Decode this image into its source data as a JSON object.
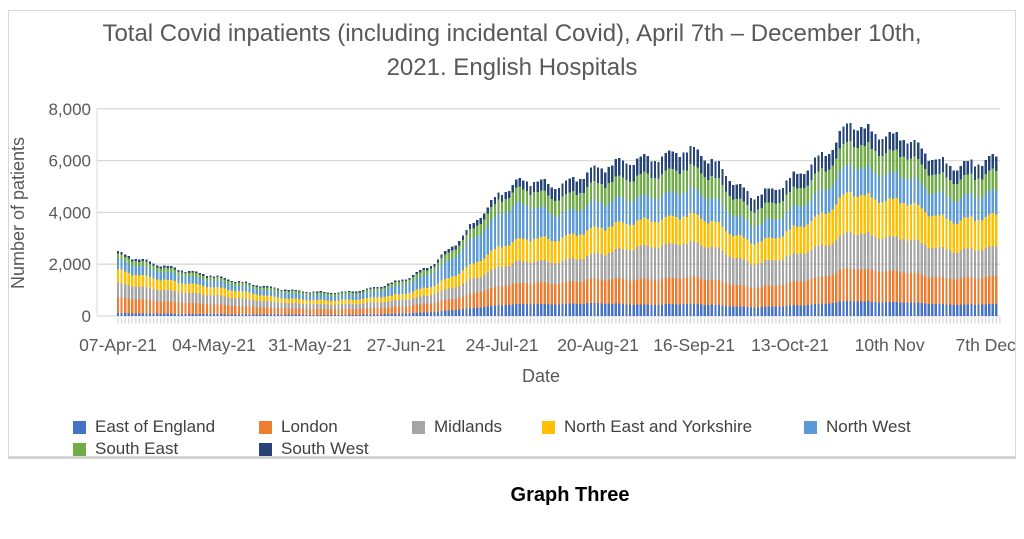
{
  "chart": {
    "title": "Total Covid inpatients (including incidental Covid), April 7th – December 10th, 2021. English Hospitals",
    "caption": "Graph Three",
    "y_axis": {
      "label": "Number of patients",
      "ticks": [
        {
          "label": "0",
          "value": 0
        },
        {
          "label": "2,000",
          "value": 2000
        },
        {
          "label": "4,000",
          "value": 4000
        },
        {
          "label": "6,000",
          "value": 6000
        },
        {
          "label": "8,000",
          "value": 8000
        }
      ]
    },
    "x_axis": {
      "label": "Date",
      "ticks": [
        {
          "label": "07-Apr-21",
          "day": 0
        },
        {
          "label": "04-May-21",
          "day": 27
        },
        {
          "label": "31-May-21",
          "day": 54
        },
        {
          "label": "27-Jun-21",
          "day": 81
        },
        {
          "label": "24-Jul-21",
          "day": 108
        },
        {
          "label": "20-Aug-21",
          "day": 135
        },
        {
          "label": "16-Sep-21",
          "day": 162
        },
        {
          "label": "13-Oct-21",
          "day": 189
        },
        {
          "label": "10th Nov",
          "day": 217
        },
        {
          "label": "7th Dec",
          "day": 244
        }
      ]
    },
    "colors": {
      "gridline": "#d9d9d9",
      "axis_text": "#595959",
      "legend_text": "#404040"
    }
  },
  "chart_data": {
    "type": "bar",
    "stacked": true,
    "x_start": "07-Apr-21",
    "x_end": "10-Dec-21",
    "n_days": 248,
    "ylim": [
      0,
      8000
    ],
    "grid": true,
    "legend_position": "bottom",
    "series": [
      {
        "name": "East of England",
        "color": "#4472C4"
      },
      {
        "name": "London",
        "color": "#ED7D31"
      },
      {
        "name": "Midlands",
        "color": "#A5A5A5"
      },
      {
        "name": "North East and Yorkshire",
        "color": "#FFC000"
      },
      {
        "name": "North West",
        "color": "#5B9BD5"
      },
      {
        "name": "South East",
        "color": "#70AD47"
      },
      {
        "name": "South West",
        "color": "#264478"
      }
    ],
    "anchor_note": "values = stacked daily patients per region [EoE, London, Midlands, NE&Yorkshire, NorthWest, SouthEast, SouthWest], day 0 = 07-Apr-21; daily bars interpolated between anchors",
    "anchors": [
      {
        "day": 0,
        "values": [
          110,
          600,
          551,
          502,
          392,
          196,
          98
        ]
      },
      {
        "day": 7,
        "values": [
          97,
          527,
          484,
          441,
          344,
          172,
          86
        ]
      },
      {
        "day": 14,
        "values": [
          86,
          466,
          428,
          390,
          304,
          152,
          76
        ]
      },
      {
        "day": 21,
        "values": [
          77,
          417,
          383,
          349,
          272,
          136,
          68
        ]
      },
      {
        "day": 27,
        "values": [
          70,
          380,
          349,
          318,
          248,
          124,
          62
        ]
      },
      {
        "day": 34,
        "values": [
          60,
          326,
          299,
          273,
          213,
          106,
          53
        ]
      },
      {
        "day": 41,
        "values": [
          54,
          276,
          247,
          219,
          207,
          94,
          53
        ]
      },
      {
        "day": 48,
        "values": [
          51,
          237,
          207,
          172,
          207,
          86,
          51
        ]
      },
      {
        "day": 54,
        "values": [
          47,
          221,
          193,
          160,
          193,
          80,
          47
        ]
      },
      {
        "day": 61,
        "values": [
          45,
          213,
          186,
          154,
          186,
          77,
          45
        ]
      },
      {
        "day": 68,
        "values": [
          49,
          229,
          200,
          166,
          200,
          83,
          49
        ]
      },
      {
        "day": 75,
        "values": [
          71,
          250,
          226,
          200,
          280,
          107,
          56
        ]
      },
      {
        "day": 82,
        "values": [
          105,
          285,
          263,
          248,
          383,
          146,
          72
        ]
      },
      {
        "day": 89,
        "values": [
          160,
          359,
          338,
          336,
          543,
          209,
          105
        ]
      },
      {
        "day": 96,
        "values": [
          260,
          457,
          466,
          481,
          797,
          319,
          171
        ]
      },
      {
        "day": 103,
        "values": [
          356,
          628,
          640,
          660,
          1094,
          437,
          235
        ]
      },
      {
        "day": 108,
        "values": [
          422,
          744,
          758,
          782,
          1296,
          518,
          278
        ]
      },
      {
        "day": 112,
        "values": [
          453,
          798,
          814,
          839,
          1391,
          556,
          299
        ]
      },
      {
        "day": 117,
        "values": [
          467,
          830,
          840,
          882,
          1234,
          604,
          394
        ]
      },
      {
        "day": 122,
        "values": [
          447,
          803,
          813,
          863,
          1029,
          602,
          462
        ]
      },
      {
        "day": 126,
        "values": [
          456,
          840,
          840,
          906,
          911,
          645,
          522
        ]
      },
      {
        "day": 133,
        "values": [
          498,
          918,
          918,
          991,
          997,
          706,
          571
        ]
      },
      {
        "day": 140,
        "values": [
          472,
          956,
          1092,
          1003,
          956,
          767,
          655
        ]
      },
      {
        "day": 147,
        "values": [
          436,
          968,
          1271,
          998,
          908,
          817,
          653
        ]
      },
      {
        "day": 154,
        "values": [
          443,
          984,
          1292,
          1015,
          923,
          830,
          664
        ]
      },
      {
        "day": 158,
        "values": [
          461,
          1024,
          1344,
          1056,
          960,
          864,
          691
        ]
      },
      {
        "day": 163,
        "values": [
          457,
          1016,
          1334,
          1048,
          953,
          857,
          686
        ]
      },
      {
        "day": 168,
        "values": [
          425,
          944,
          1239,
          974,
          885,
          797,
          637
        ]
      },
      {
        "day": 173,
        "values": [
          374,
          848,
          1066,
          884,
          770,
          686,
          572
        ]
      },
      {
        "day": 178,
        "values": [
          337,
          762,
          924,
          809,
          679,
          601,
          508
        ]
      },
      {
        "day": 184,
        "values": [
          354,
          800,
          970,
          849,
          713,
          631,
          533
        ]
      },
      {
        "day": 190,
        "values": [
          401,
          899,
          1043,
          1017,
          781,
          669,
          540
        ]
      },
      {
        "day": 196,
        "values": [
          446,
          1000,
          1160,
          1131,
          869,
          744,
          601
        ]
      },
      {
        "day": 201,
        "values": [
          504,
          1120,
          1231,
          1343,
          950,
          786,
          616
        ]
      },
      {
        "day": 206,
        "values": [
          580,
          1288,
          1416,
          1544,
          1092,
          904,
          708
        ]
      },
      {
        "day": 210,
        "values": [
          551,
          1223,
          1344,
          1466,
          1037,
          858,
          671
        ]
      },
      {
        "day": 213,
        "values": [
          545,
          1211,
          1331,
          1451,
          1027,
          850,
          666
        ]
      },
      {
        "day": 217,
        "values": [
          531,
          1180,
          1297,
          1415,
          1001,
          828,
          649
        ]
      },
      {
        "day": 221,
        "values": [
          535,
          1188,
          1307,
          1425,
          1008,
          834,
          653
        ]
      },
      {
        "day": 226,
        "values": [
          493,
          1094,
          1203,
          1312,
          928,
          768,
          602
        ]
      },
      {
        "day": 231,
        "values": [
          458,
          1017,
          1119,
          1220,
          863,
          714,
          559
        ]
      },
      {
        "day": 236,
        "values": [
          431,
          1006,
          1064,
          1150,
          863,
          719,
          518
        ]
      },
      {
        "day": 240,
        "values": [
          443,
          1033,
          1092,
          1180,
          885,
          738,
          531
        ]
      },
      {
        "day": 244,
        "values": [
          450,
          1050,
          1110,
          1200,
          900,
          750,
          540
        ]
      },
      {
        "day": 247,
        "values": [
          458,
          1068,
          1129,
          1220,
          915,
          763,
          549
        ]
      }
    ]
  }
}
